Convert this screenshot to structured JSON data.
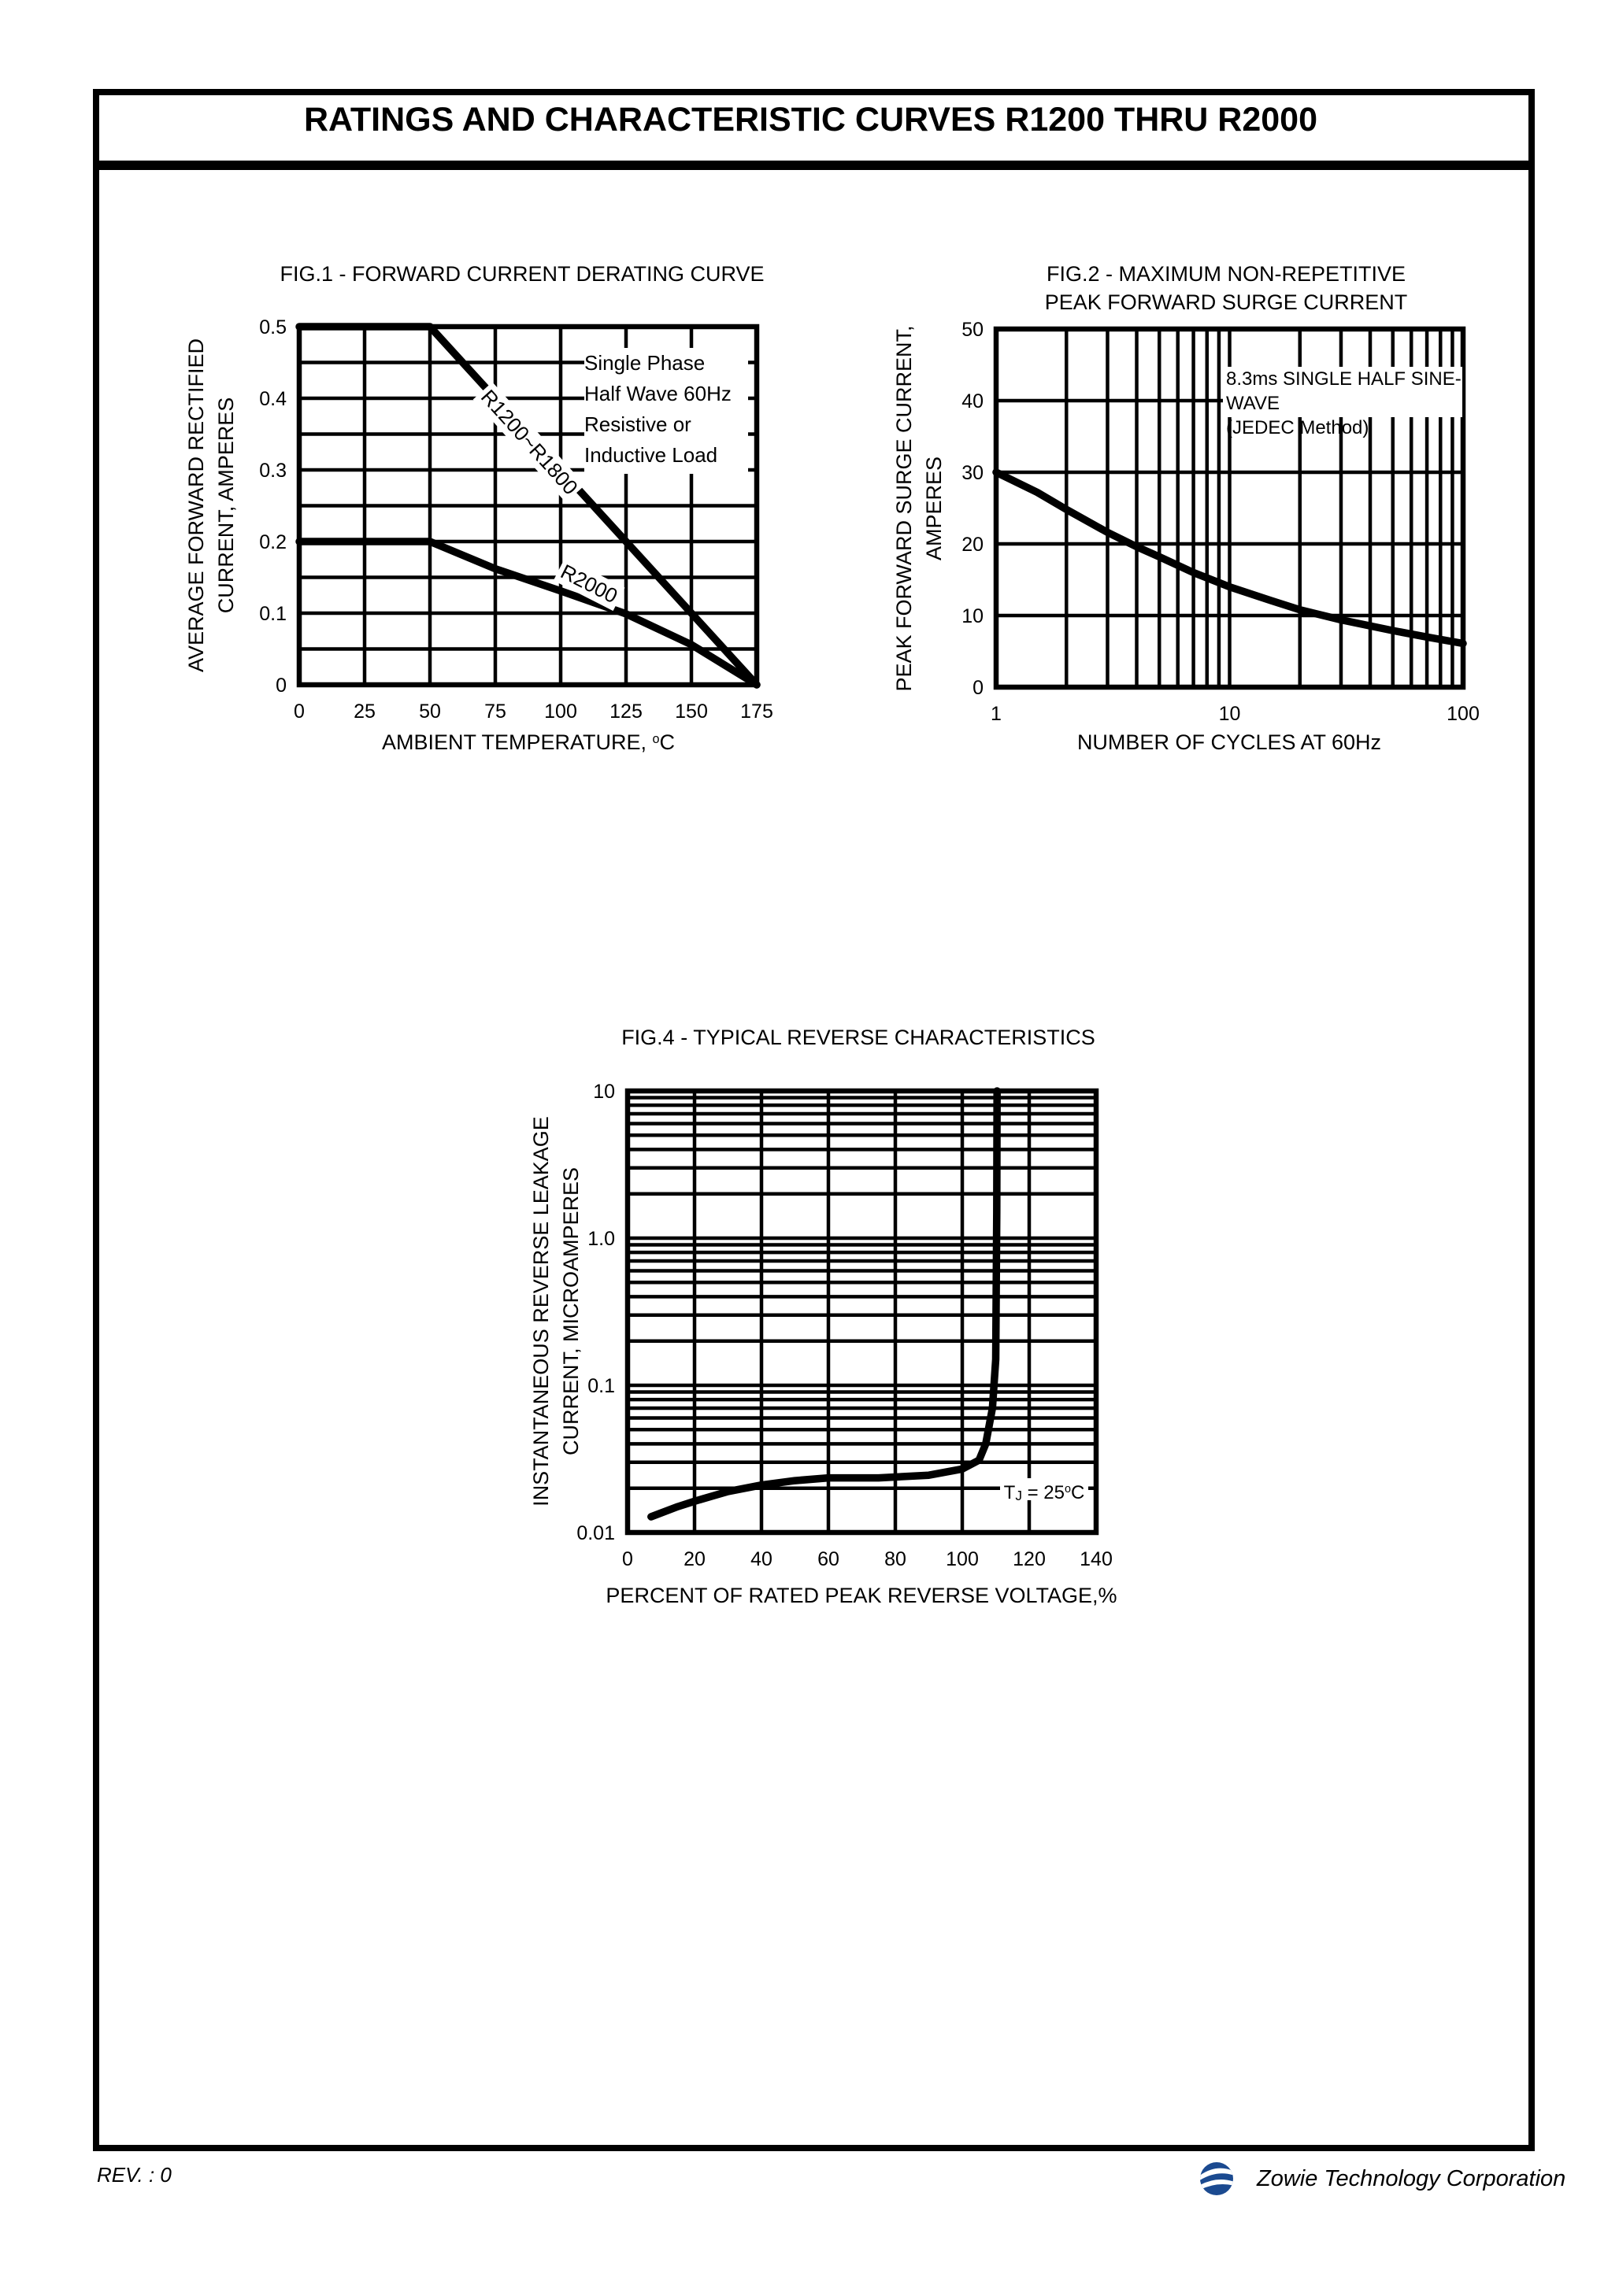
{
  "page": {
    "title": "RATINGS AND CHARACTERISTIC CURVES R1200 THRU R2000",
    "footer": {
      "revision": "REV. : 0",
      "company": "Zowie Technology Corporation"
    },
    "colors": {
      "ink": "#000000",
      "paper": "#ffffff",
      "logo_blue": "#1b4a90"
    }
  },
  "chart_data": [
    {
      "id": "fig1",
      "type": "line",
      "title": "FIG.1 - FORWARD CURRENT DERATING CURVE",
      "title_lines": [
        "FIG.1 - FORWARD CURRENT DERATING CURVE"
      ],
      "xlabel": "AMBIENT TEMPERATURE, °C",
      "xlabel_parts": {
        "pre": "AMBIENT TEMPERATURE, ",
        "sup": "o",
        "post": "C"
      },
      "ylabel": "AVERAGE FORWARD RECTIFIED CURRENT, AMPERES",
      "ylabel_lines": [
        "AVERAGE FORWARD RECTIFIED",
        "CURRENT, AMPERES"
      ],
      "x_scale": "linear",
      "y_scale": "linear",
      "xlim": [
        0,
        175
      ],
      "ylim": [
        0,
        0.5
      ],
      "x_ticks": [
        0,
        25,
        50,
        75,
        100,
        125,
        150,
        175
      ],
      "x_tick_labels": [
        "0",
        "25",
        "50",
        "75",
        "100",
        "125",
        "150",
        "175"
      ],
      "y_ticks": [
        0,
        0.1,
        0.2,
        0.3,
        0.4,
        0.5
      ],
      "y_tick_labels": [
        "0",
        "0.1",
        "0.2",
        "0.3",
        "0.4",
        "0.5"
      ],
      "x_grid": [
        0,
        25,
        50,
        75,
        100,
        125,
        150,
        175
      ],
      "y_grid": [
        0,
        0.05,
        0.1,
        0.15,
        0.2,
        0.25,
        0.3,
        0.35,
        0.4,
        0.45,
        0.5
      ],
      "grid": true,
      "legend_position": "none",
      "annotation": "Single Phase Half Wave 60Hz Resistive or Inductive Load",
      "annotation_lines": [
        "Single Phase",
        "Half Wave 60Hz",
        "Resistive or",
        "Inductive Load"
      ],
      "series": [
        {
          "name": "R1200~R1800",
          "points": [
            [
              0,
              0.5
            ],
            [
              50,
              0.5
            ],
            [
              175,
              0
            ]
          ]
        },
        {
          "name": "R2000",
          "points": [
            [
              0,
              0.2
            ],
            [
              50,
              0.2
            ],
            [
              75,
              0.162
            ],
            [
              100,
              0.131
            ],
            [
              125,
              0.099
            ],
            [
              150,
              0.056
            ],
            [
              175,
              0
            ]
          ]
        }
      ]
    },
    {
      "id": "fig2",
      "type": "line",
      "title": "FIG.2 - MAXIMUM NON-REPETITIVE PEAK FORWARD SURGE CURRENT",
      "title_lines": [
        "FIG.2 - MAXIMUM NON-REPETITIVE",
        "PEAK FORWARD SURGE CURRENT"
      ],
      "xlabel": "NUMBER OF CYCLES AT 60Hz",
      "ylabel": "PEAK FORWARD SURGE CURRENT, AMPERES",
      "ylabel_lines": [
        "PEAK FORWARD SURGE CURRENT,",
        "AMPERES"
      ],
      "x_scale": "log",
      "y_scale": "linear",
      "xlim": [
        1,
        100
      ],
      "ylim": [
        0,
        50
      ],
      "x_ticks": [
        1,
        10,
        100
      ],
      "x_tick_labels": [
        "1",
        "10",
        "100"
      ],
      "y_ticks": [
        0,
        10,
        20,
        30,
        40,
        50
      ],
      "y_tick_labels": [
        "0",
        "10",
        "20",
        "30",
        "40",
        "50"
      ],
      "x_grid": [
        1,
        2,
        3,
        4,
        5,
        6,
        7,
        8,
        9,
        10,
        20,
        30,
        40,
        50,
        60,
        70,
        80,
        90,
        100
      ],
      "y_grid": [
        0,
        10,
        20,
        30,
        40,
        50
      ],
      "grid": true,
      "legend_position": "none",
      "annotation": "8.3ms SINGLE HALF SINE-WAVE (JEDEC Method)",
      "annotation_lines": [
        "8.3ms SINGLE HALF SINE-WAVE",
        "(JEDEC Method)"
      ],
      "series": [
        {
          "name": "surge",
          "points": [
            [
              1,
              30
            ],
            [
              1.5,
              27.2
            ],
            [
              2,
              24.8
            ],
            [
              3,
              21.6
            ],
            [
              4,
              19.6
            ],
            [
              5,
              18.2
            ],
            [
              7,
              16
            ],
            [
              10,
              14
            ],
            [
              15,
              12.1
            ],
            [
              20,
              10.8
            ],
            [
              30,
              9.4
            ],
            [
              50,
              7.9
            ],
            [
              70,
              7
            ],
            [
              100,
              6.1
            ]
          ]
        }
      ]
    },
    {
      "id": "fig4",
      "type": "line",
      "title": "FIG.4 - TYPICAL REVERSE CHARACTERISTICS",
      "title_lines": [
        "FIG.4 - TYPICAL REVERSE CHARACTERISTICS"
      ],
      "xlabel": "PERCENT OF RATED PEAK REVERSE VOLTAGE,%",
      "ylabel": "INSTANTANEOUS REVERSE LEAKAGE CURRENT, MICROAMPERES",
      "ylabel_lines": [
        "INSTANTANEOUS REVERSE LEAKAGE",
        "CURRENT, MICROAMPERES"
      ],
      "x_scale": "linear",
      "y_scale": "log",
      "xlim": [
        0,
        140
      ],
      "ylim": [
        0.01,
        10
      ],
      "x_ticks": [
        0,
        20,
        40,
        60,
        80,
        100,
        120,
        140
      ],
      "x_tick_labels": [
        "0",
        "20",
        "40",
        "60",
        "80",
        "100",
        "120",
        "140"
      ],
      "y_ticks": [
        0.01,
        0.1,
        1,
        10
      ],
      "y_tick_labels": [
        "0.01",
        "0.1",
        "1.0",
        "10"
      ],
      "x_grid": [
        0,
        20,
        40,
        60,
        80,
        100,
        120,
        140
      ],
      "y_grid": [
        0.01,
        0.02,
        0.03,
        0.04,
        0.05,
        0.06,
        0.07,
        0.08,
        0.09,
        0.1,
        0.2,
        0.3,
        0.4,
        0.5,
        0.6,
        0.7,
        0.8,
        0.9,
        1,
        2,
        3,
        4,
        5,
        6,
        7,
        8,
        9,
        10
      ],
      "grid": true,
      "legend_position": "none",
      "annotation": "TJ = 25°C",
      "annotation_parts": {
        "pre": "T",
        "sub": "J",
        "mid": " = 25",
        "sup": "o",
        "post": "C"
      },
      "series": [
        {
          "name": "leakage",
          "points": [
            [
              7,
              0.0128
            ],
            [
              15,
              0.015
            ],
            [
              20,
              0.0163
            ],
            [
              30,
              0.019
            ],
            [
              40,
              0.021
            ],
            [
              50,
              0.0225
            ],
            [
              60,
              0.0235
            ],
            [
              75,
              0.0235
            ],
            [
              90,
              0.0245
            ],
            [
              100,
              0.027
            ],
            [
              105,
              0.031
            ],
            [
              107,
              0.04
            ],
            [
              109,
              0.07
            ],
            [
              110,
              0.15
            ],
            [
              110.3,
              1.5
            ],
            [
              110.4,
              10
            ]
          ]
        }
      ]
    }
  ]
}
